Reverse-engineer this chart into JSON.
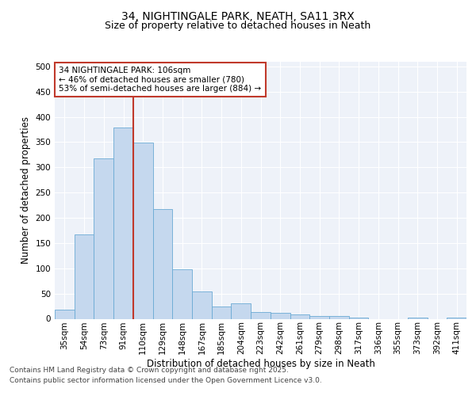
{
  "title_line1": "34, NIGHTINGALE PARK, NEATH, SA11 3RX",
  "title_line2": "Size of property relative to detached houses in Neath",
  "xlabel": "Distribution of detached houses by size in Neath",
  "ylabel": "Number of detached properties",
  "categories": [
    "35sqm",
    "54sqm",
    "73sqm",
    "91sqm",
    "110sqm",
    "129sqm",
    "148sqm",
    "167sqm",
    "185sqm",
    "204sqm",
    "223sqm",
    "242sqm",
    "261sqm",
    "279sqm",
    "298sqm",
    "317sqm",
    "336sqm",
    "355sqm",
    "373sqm",
    "392sqm",
    "411sqm"
  ],
  "values": [
    18,
    167,
    317,
    379,
    349,
    217,
    98,
    54,
    25,
    30,
    14,
    11,
    9,
    6,
    5,
    3,
    0,
    0,
    3,
    0,
    2
  ],
  "bar_color": "#c5d8ee",
  "bar_edge_color": "#6aaad4",
  "bg_color": "#eef2f9",
  "grid_color": "#ffffff",
  "vline_x": 3.5,
  "vline_color": "#c0392b",
  "annotation_text": "34 NIGHTINGALE PARK: 106sqm\n← 46% of detached houses are smaller (780)\n53% of semi-detached houses are larger (884) →",
  "annotation_box_color": "white",
  "annotation_box_edge": "#c0392b",
  "ylim": [
    0,
    510
  ],
  "yticks": [
    0,
    50,
    100,
    150,
    200,
    250,
    300,
    350,
    400,
    450,
    500
  ],
  "footnote1": "Contains HM Land Registry data © Crown copyright and database right 2025.",
  "footnote2": "Contains public sector information licensed under the Open Government Licence v3.0.",
  "title_fontsize": 10,
  "subtitle_fontsize": 9,
  "axis_label_fontsize": 8.5,
  "tick_fontsize": 7.5,
  "annotation_fontsize": 7.5,
  "footnote_fontsize": 6.5
}
